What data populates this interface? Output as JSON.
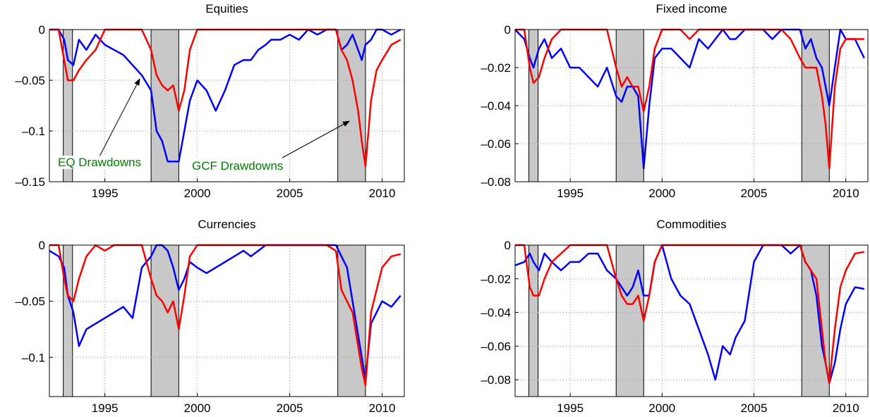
{
  "chart_data": [
    {
      "type": "line",
      "title": "Equities",
      "x": [
        1992.0,
        1992.5,
        1992.8,
        1993.0,
        1993.3,
        1993.6,
        1994.0,
        1994.5,
        1995.0,
        1995.5,
        1996.0,
        1996.5,
        1997.0,
        1997.5,
        1997.8,
        1998.1,
        1998.4,
        1998.7,
        1999.0,
        1999.3,
        1999.6,
        2000.0,
        2000.5,
        2001.0,
        2001.5,
        2002.0,
        2002.5,
        2002.9,
        2003.3,
        2003.7,
        2004.0,
        2004.5,
        2005.0,
        2005.5,
        2006.0,
        2006.5,
        2007.0,
        2007.5,
        2007.8,
        2008.1,
        2008.4,
        2008.7,
        2008.9,
        2009.1,
        2009.4,
        2009.7,
        2010.0,
        2010.5,
        2011.0
      ],
      "xlim": [
        1992,
        2011.2
      ],
      "xticks": [
        1995,
        2000,
        2005,
        2010
      ],
      "ylim": [
        -0.15,
        0
      ],
      "yticks": [
        {
          "value": -0.15,
          "label": "–0.15"
        },
        {
          "value": -0.1,
          "label": "–0.1"
        },
        {
          "value": -0.05,
          "label": "–0.05"
        },
        0
      ],
      "grid": true,
      "shaded_regions": [
        [
          1992.75,
          1993.25
        ],
        [
          1997.5,
          1999.0
        ],
        [
          2007.6,
          2009.1
        ]
      ],
      "series": [
        {
          "color": "#0000ff",
          "values": [
            0,
            0,
            -0.01,
            -0.03,
            -0.035,
            -0.01,
            -0.02,
            -0.005,
            -0.015,
            -0.02,
            -0.025,
            -0.035,
            -0.045,
            -0.06,
            -0.1,
            -0.11,
            -0.13,
            -0.13,
            -0.13,
            -0.1,
            -0.07,
            -0.05,
            -0.06,
            -0.08,
            -0.06,
            -0.035,
            -0.03,
            -0.03,
            -0.02,
            -0.015,
            -0.01,
            -0.01,
            -0.005,
            -0.01,
            0,
            -0.005,
            0,
            0,
            -0.02,
            -0.015,
            -0.005,
            -0.02,
            -0.03,
            -0.015,
            -0.01,
            0,
            0,
            -0.005,
            0
          ]
        },
        {
          "color": "#ff0000",
          "values": [
            0,
            0,
            -0.03,
            -0.05,
            -0.05,
            -0.04,
            -0.03,
            -0.02,
            0,
            0,
            0,
            0,
            0,
            -0.02,
            -0.045,
            -0.055,
            -0.06,
            -0.055,
            -0.08,
            -0.06,
            -0.02,
            0,
            0,
            0,
            0,
            0,
            0,
            0,
            0,
            0,
            0,
            0,
            0,
            0,
            0,
            0,
            0,
            0,
            -0.02,
            -0.03,
            -0.05,
            -0.08,
            -0.11,
            -0.135,
            -0.07,
            -0.04,
            -0.03,
            -0.015,
            -0.01
          ]
        }
      ],
      "annotations": [
        "EQ Drawdowns",
        "GCF Drawdowns"
      ]
    },
    {
      "type": "line",
      "title": "Fixed income",
      "x": [
        1992.0,
        1992.5,
        1992.8,
        1993.0,
        1993.3,
        1993.6,
        1994.0,
        1994.5,
        1995.0,
        1995.5,
        1996.0,
        1996.5,
        1997.0,
        1997.5,
        1997.8,
        1998.1,
        1998.4,
        1998.7,
        1999.0,
        1999.3,
        1999.6,
        2000.0,
        2000.5,
        2001.0,
        2001.5,
        2002.0,
        2002.5,
        2002.9,
        2003.3,
        2003.7,
        2004.0,
        2004.5,
        2005.0,
        2005.5,
        2006.0,
        2006.5,
        2007.0,
        2007.5,
        2007.8,
        2008.1,
        2008.4,
        2008.7,
        2008.9,
        2009.1,
        2009.4,
        2009.7,
        2010.0,
        2010.5,
        2011.0
      ],
      "xlim": [
        1992,
        2011.2
      ],
      "xticks": [
        1995,
        2000,
        2005,
        2010
      ],
      "ylim": [
        -0.08,
        0
      ],
      "yticks": [
        {
          "value": -0.08,
          "label": "–0.08"
        },
        {
          "value": -0.06,
          "label": "–0.06"
        },
        {
          "value": -0.04,
          "label": "–0.04"
        },
        {
          "value": -0.02,
          "label": "–0.02"
        },
        0
      ],
      "grid": true,
      "shaded_regions": [
        [
          1992.75,
          1993.25
        ],
        [
          1997.5,
          1999.0
        ],
        [
          2007.6,
          2009.1
        ]
      ],
      "series": [
        {
          "color": "#0000ff",
          "values": [
            0,
            -0.005,
            -0.015,
            -0.02,
            -0.01,
            -0.005,
            -0.015,
            -0.01,
            -0.02,
            -0.02,
            -0.025,
            -0.03,
            -0.02,
            -0.035,
            -0.038,
            -0.03,
            -0.03,
            -0.035,
            -0.073,
            -0.04,
            -0.015,
            -0.01,
            -0.01,
            -0.015,
            -0.02,
            -0.005,
            -0.01,
            -0.005,
            0,
            -0.005,
            -0.005,
            0,
            0,
            0,
            -0.005,
            0,
            0,
            0,
            -0.01,
            -0.005,
            -0.015,
            -0.02,
            -0.03,
            -0.04,
            -0.02,
            0,
            -0.005,
            -0.005,
            -0.015
          ]
        },
        {
          "color": "#ff0000",
          "values": [
            0,
            0,
            -0.02,
            -0.028,
            -0.025,
            -0.015,
            -0.005,
            0,
            0,
            0,
            0,
            0,
            0,
            -0.02,
            -0.03,
            -0.025,
            -0.03,
            -0.03,
            -0.043,
            -0.03,
            -0.01,
            0,
            0,
            0,
            -0.005,
            0,
            0,
            0,
            0,
            0,
            0,
            0,
            0,
            0,
            0,
            0,
            -0.005,
            -0.015,
            -0.02,
            -0.02,
            -0.02,
            -0.035,
            -0.05,
            -0.073,
            -0.03,
            -0.01,
            -0.005,
            -0.005,
            -0.005
          ]
        }
      ]
    },
    {
      "type": "line",
      "title": "Currencies",
      "x": [
        1992.0,
        1992.5,
        1992.8,
        1993.0,
        1993.3,
        1993.6,
        1994.0,
        1994.5,
        1995.0,
        1995.5,
        1996.0,
        1996.5,
        1997.0,
        1997.5,
        1997.8,
        1998.1,
        1998.4,
        1998.7,
        1999.0,
        1999.3,
        1999.6,
        2000.0,
        2000.5,
        2001.0,
        2001.5,
        2002.0,
        2002.5,
        2002.9,
        2003.3,
        2003.7,
        2004.0,
        2004.5,
        2005.0,
        2005.5,
        2006.0,
        2006.5,
        2007.0,
        2007.5,
        2007.8,
        2008.1,
        2008.4,
        2008.7,
        2008.9,
        2009.1,
        2009.4,
        2009.7,
        2010.0,
        2010.5,
        2011.0
      ],
      "xlim": [
        1992,
        2011.2
      ],
      "xticks": [
        1995,
        2000,
        2005,
        2010
      ],
      "ylim": [
        -0.135,
        0
      ],
      "yticks": [
        {
          "value": -0.1,
          "label": "–0.1"
        },
        {
          "value": -0.05,
          "label": "–0.05"
        },
        0
      ],
      "grid": true,
      "shaded_regions": [
        [
          1992.75,
          1993.25
        ],
        [
          1997.5,
          1999.0
        ],
        [
          2007.6,
          2009.1
        ]
      ],
      "series": [
        {
          "color": "#0000ff",
          "values": [
            -0.005,
            -0.01,
            -0.02,
            -0.045,
            -0.06,
            -0.09,
            -0.075,
            -0.07,
            -0.065,
            -0.06,
            -0.055,
            -0.065,
            -0.02,
            -0.01,
            0,
            0,
            -0.005,
            -0.02,
            -0.04,
            -0.03,
            -0.015,
            -0.02,
            -0.025,
            -0.02,
            -0.015,
            -0.01,
            -0.005,
            -0.01,
            -0.005,
            0,
            0,
            0,
            0,
            0,
            0,
            0,
            0,
            0,
            -0.01,
            -0.02,
            -0.05,
            -0.08,
            -0.1,
            -0.12,
            -0.07,
            -0.06,
            -0.05,
            -0.055,
            -0.045
          ]
        },
        {
          "color": "#ff0000",
          "values": [
            0,
            0,
            -0.03,
            -0.045,
            -0.05,
            -0.03,
            -0.01,
            0,
            -0.005,
            0,
            0,
            0,
            0,
            -0.03,
            -0.045,
            -0.05,
            -0.06,
            -0.05,
            -0.075,
            -0.045,
            -0.01,
            0,
            0,
            0,
            0,
            0,
            0,
            0,
            0,
            0,
            0,
            0,
            0,
            0,
            0,
            0,
            0,
            -0.005,
            -0.04,
            -0.05,
            -0.06,
            -0.09,
            -0.11,
            -0.125,
            -0.06,
            -0.04,
            -0.02,
            -0.01,
            -0.008
          ]
        }
      ]
    },
    {
      "type": "line",
      "title": "Commodities",
      "x": [
        1992.0,
        1992.5,
        1992.8,
        1993.0,
        1993.3,
        1993.6,
        1994.0,
        1994.5,
        1995.0,
        1995.5,
        1996.0,
        1996.5,
        1997.0,
        1997.5,
        1997.8,
        1998.1,
        1998.4,
        1998.7,
        1999.0,
        1999.3,
        1999.6,
        2000.0,
        2000.5,
        2001.0,
        2001.5,
        2002.0,
        2002.5,
        2002.9,
        2003.3,
        2003.7,
        2004.0,
        2004.5,
        2005.0,
        2005.5,
        2006.0,
        2006.5,
        2007.0,
        2007.5,
        2007.8,
        2008.1,
        2008.4,
        2008.7,
        2008.9,
        2009.1,
        2009.4,
        2009.7,
        2010.0,
        2010.5,
        2011.0
      ],
      "xlim": [
        1992,
        2011.2
      ],
      "xticks": [
        1995,
        2000,
        2005,
        2010
      ],
      "ylim": [
        -0.09,
        0
      ],
      "yticks": [
        {
          "value": -0.08,
          "label": "–0.08"
        },
        {
          "value": -0.06,
          "label": "–0.06"
        },
        {
          "value": -0.04,
          "label": "–0.04"
        },
        {
          "value": -0.02,
          "label": "–0.02"
        },
        0
      ],
      "grid": true,
      "shaded_regions": [
        [
          1992.75,
          1993.25
        ],
        [
          1997.5,
          1999.0
        ],
        [
          2007.6,
          2009.1
        ]
      ],
      "series": [
        {
          "color": "#0000ff",
          "values": [
            -0.012,
            -0.01,
            -0.005,
            -0.01,
            -0.015,
            -0.005,
            -0.01,
            -0.015,
            -0.01,
            -0.01,
            -0.005,
            -0.005,
            -0.015,
            -0.02,
            -0.025,
            -0.03,
            -0.025,
            -0.015,
            -0.03,
            -0.03,
            -0.01,
            0,
            -0.02,
            -0.03,
            -0.035,
            -0.05,
            -0.065,
            -0.08,
            -0.06,
            -0.065,
            -0.055,
            -0.045,
            -0.01,
            0,
            0,
            0,
            -0.005,
            0,
            -0.01,
            -0.015,
            -0.03,
            -0.06,
            -0.07,
            -0.082,
            -0.07,
            -0.05,
            -0.035,
            -0.025,
            -0.026
          ]
        },
        {
          "color": "#ff0000",
          "values": [
            0,
            0,
            -0.025,
            -0.03,
            -0.03,
            -0.02,
            -0.01,
            -0.005,
            0,
            0,
            0,
            0,
            0,
            -0.02,
            -0.03,
            -0.035,
            -0.035,
            -0.03,
            -0.045,
            -0.03,
            -0.01,
            0,
            0,
            0,
            0,
            0,
            0,
            0,
            0,
            0,
            0,
            0,
            0,
            0,
            0,
            0,
            0,
            0,
            -0.01,
            -0.015,
            -0.02,
            -0.05,
            -0.07,
            -0.082,
            -0.05,
            -0.025,
            -0.015,
            -0.005,
            -0.004
          ]
        }
      ]
    }
  ]
}
